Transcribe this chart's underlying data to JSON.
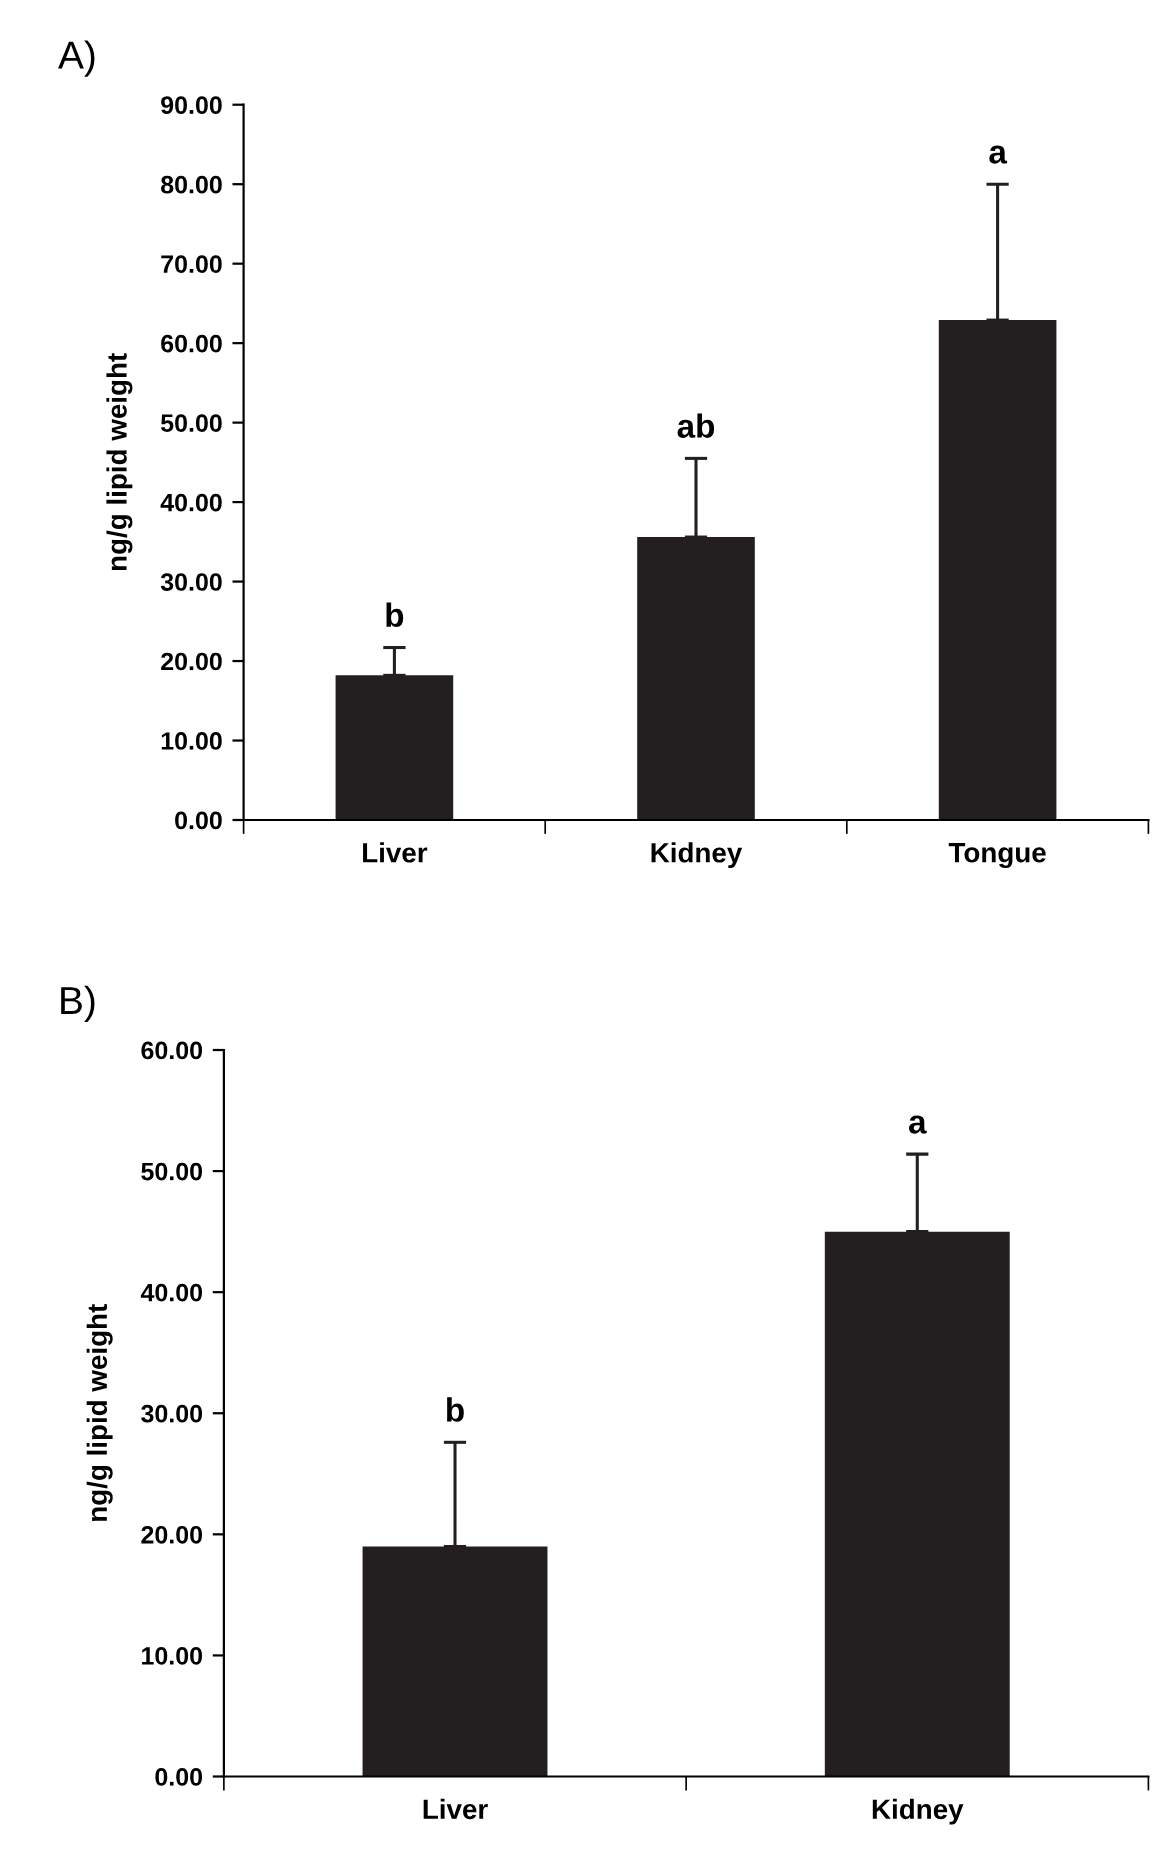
{
  "chart_data": [
    {
      "type": "bar",
      "title": "A)",
      "ylabel": "ng/g lipid weight",
      "categories": [
        "Liver",
        "Kidney",
        "Tongue"
      ],
      "values": [
        18.2,
        35.6,
        62.9
      ],
      "color": "#231f20",
      "errors": [
        [
          18.2,
          21.7
        ],
        [
          35.6,
          45.5
        ],
        [
          62.9,
          80.0
        ]
      ],
      "ylim": [
        0,
        90
      ],
      "yticks": [
        {
          "value": 0,
          "label": "0.00"
        },
        {
          "value": 10,
          "label": "10.00"
        },
        {
          "value": 20,
          "label": "20.00"
        },
        {
          "value": 30,
          "label": "30.00"
        },
        {
          "value": 40,
          "label": "40.00"
        },
        {
          "value": 50,
          "label": "50.00"
        },
        {
          "value": 60,
          "label": "60.00"
        },
        {
          "value": 70,
          "label": "70.00"
        },
        {
          "value": 80,
          "label": "80.00"
        },
        {
          "value": 90,
          "label": "90.00"
        }
      ],
      "annotations": [
        {
          "text": "b",
          "x": "Liver",
          "y": 21.7
        },
        {
          "text": "ab",
          "x": "Kidney",
          "y": 45.5
        },
        {
          "text": "a",
          "x": "Tongue",
          "y": 80.0
        }
      ],
      "grid": false,
      "legend": false
    },
    {
      "type": "bar",
      "title": "B)",
      "ylabel": "ng/g lipid weight",
      "categories": [
        "Liver",
        "Kidney"
      ],
      "values": [
        19.0,
        45.0
      ],
      "color": "#231f20",
      "errors": [
        [
          19.0,
          27.6
        ],
        [
          45.0,
          51.4
        ]
      ],
      "ylim": [
        0,
        60
      ],
      "yticks": [
        {
          "value": 0,
          "label": "0.00"
        },
        {
          "value": 10,
          "label": "10.00"
        },
        {
          "value": 20,
          "label": "20.00"
        },
        {
          "value": 30,
          "label": "30.00"
        },
        {
          "value": 40,
          "label": "40.00"
        },
        {
          "value": 50,
          "label": "50.00"
        },
        {
          "value": 60,
          "label": "60.00"
        }
      ],
      "annotations": [
        {
          "text": "b",
          "x": "Liver",
          "y": 27.6
        },
        {
          "text": "a",
          "x": "Kidney",
          "y": 51.4
        }
      ],
      "grid": false,
      "legend": false
    }
  ]
}
